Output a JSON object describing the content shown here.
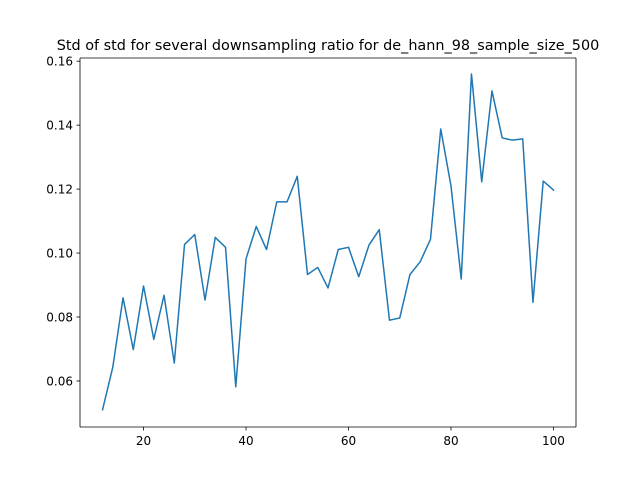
{
  "chart_data": {
    "type": "line",
    "title": "Std of std for several downsampling ratio for de_hann_98_sample_size_500",
    "xlabel": "",
    "ylabel": "",
    "xlim": [
      7.6,
      104.4
    ],
    "ylim": [
      0.0456,
      0.161
    ],
    "x_ticks": [
      20,
      40,
      60,
      80,
      100
    ],
    "x_tick_labels": [
      "20",
      "40",
      "60",
      "80",
      "100"
    ],
    "y_ticks": [
      0.06,
      0.08,
      0.1,
      0.12,
      0.14,
      0.16
    ],
    "y_tick_labels": [
      "0.06",
      "0.08",
      "0.10",
      "0.12",
      "0.14",
      "0.16"
    ],
    "grid": false,
    "legend": false,
    "series": [
      {
        "color": "#1f77b4",
        "x": [
          12,
          14,
          16,
          18,
          20,
          22,
          24,
          26,
          28,
          30,
          32,
          34,
          36,
          38,
          40,
          42,
          44,
          46,
          48,
          50,
          52,
          54,
          56,
          58,
          60,
          62,
          64,
          66,
          68,
          70,
          72,
          74,
          76,
          78,
          80,
          82,
          84,
          86,
          88,
          90,
          92,
          94,
          96,
          98,
          100
        ],
        "y": [
          0.051,
          0.0643,
          0.086,
          0.0698,
          0.0897,
          0.073,
          0.0868,
          0.0656,
          0.1027,
          0.1058,
          0.0853,
          0.1049,
          0.1018,
          0.0582,
          0.0982,
          0.1083,
          0.1011,
          0.116,
          0.116,
          0.124,
          0.0933,
          0.0955,
          0.0891,
          0.1011,
          0.1018,
          0.0926,
          0.1025,
          0.1073,
          0.079,
          0.0797,
          0.0933,
          0.0973,
          0.1043,
          0.1388,
          0.121,
          0.0919,
          0.156,
          0.1223,
          0.1507,
          0.136,
          0.1353,
          0.1357,
          0.0846,
          0.1225,
          0.1197
        ]
      }
    ]
  }
}
